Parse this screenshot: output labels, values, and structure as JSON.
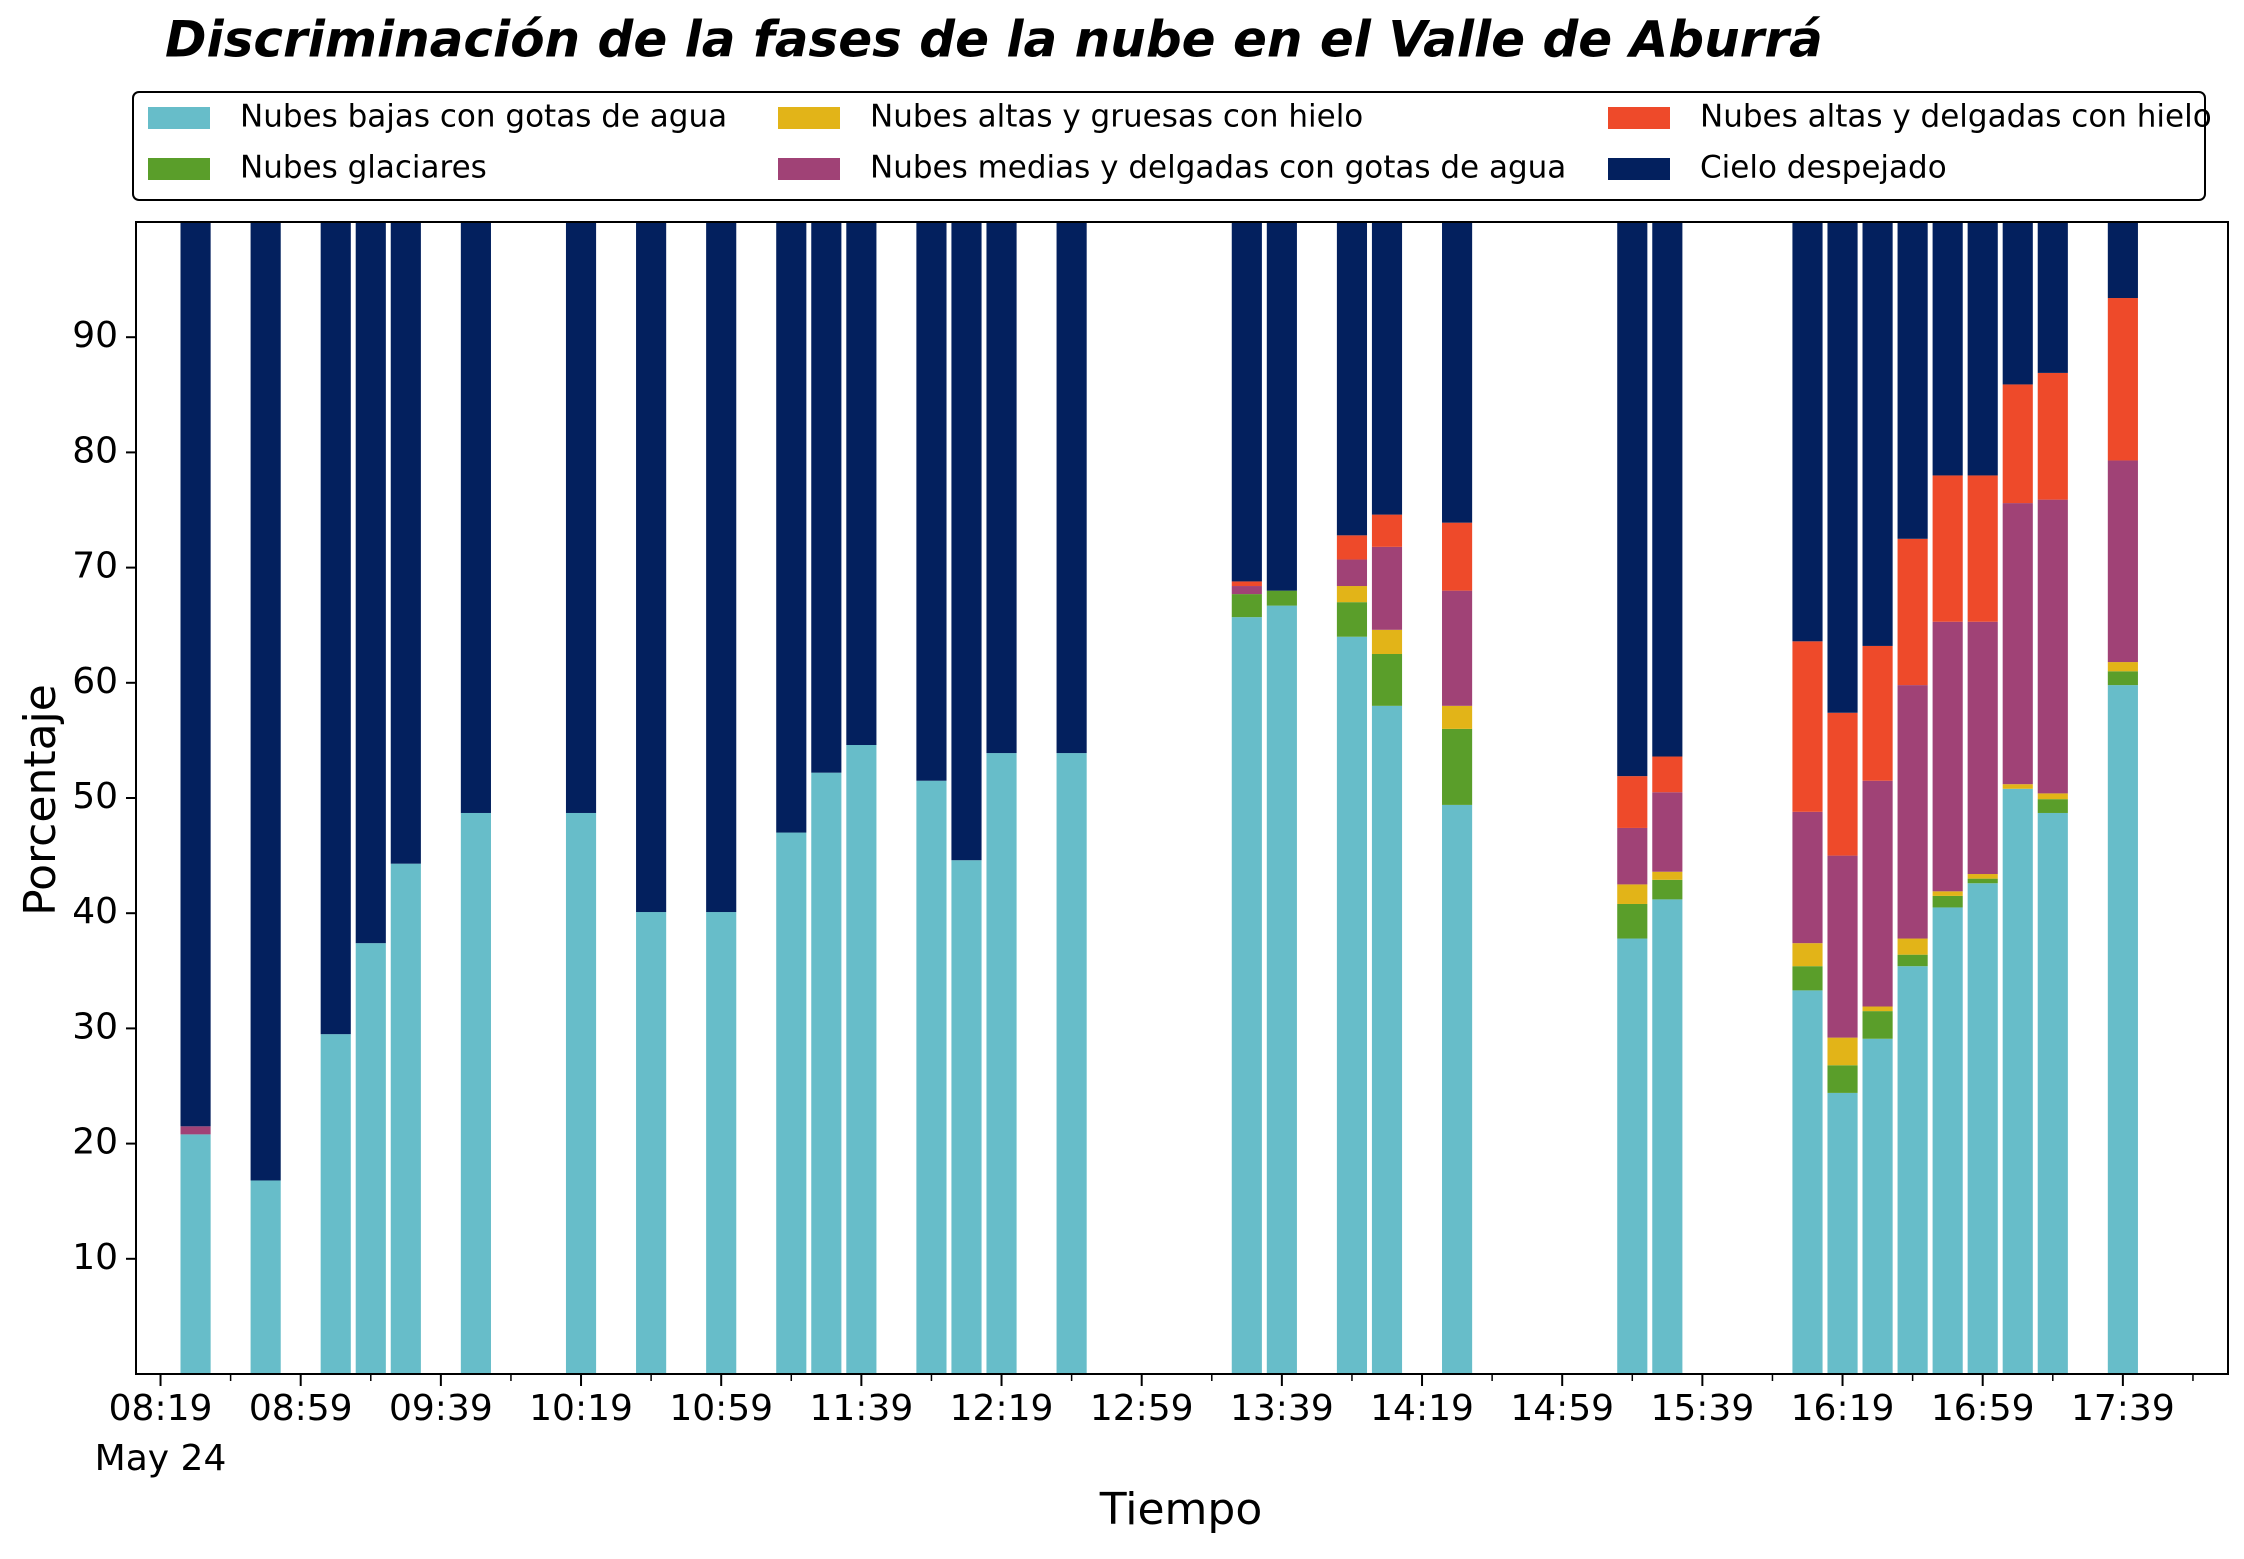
{
  "chart_data": {
    "type": "stacked_bar",
    "title": "Discriminación de la fases de la nube en el Valle de Aburrá",
    "xlabel": "Tiempo",
    "ylabel": "Porcentaje",
    "x_offset_label": "May 24",
    "x": [
      "08:29",
      "08:49",
      "09:09",
      "09:19",
      "09:29",
      "09:49",
      "10:19",
      "10:39",
      "10:59",
      "11:19",
      "11:29",
      "11:39",
      "11:59",
      "12:09",
      "12:19",
      "12:39",
      "13:29",
      "13:39",
      "13:59",
      "14:09",
      "14:29",
      "15:19",
      "15:29",
      "16:09",
      "16:19",
      "16:29",
      "16:39",
      "16:49",
      "16:59",
      "17:09",
      "17:19",
      "17:39"
    ],
    "xlim": [
      "08:12",
      "18:09"
    ],
    "xticks": [
      "08:19",
      "08:59",
      "09:39",
      "10:19",
      "10:59",
      "11:39",
      "12:19",
      "12:59",
      "13:39",
      "14:19",
      "14:59",
      "15:39",
      "16:19",
      "16:59",
      "17:39"
    ],
    "xminorticks": [
      "08:39",
      "09:19",
      "09:59",
      "10:39",
      "11:19",
      "11:59",
      "12:39",
      "13:19",
      "13:59",
      "14:39",
      "15:19",
      "15:59",
      "16:39",
      "17:19",
      "17:59"
    ],
    "ylim": [
      0,
      100
    ],
    "yticks": [
      10,
      20,
      30,
      40,
      50,
      60,
      70,
      80,
      90
    ],
    "legend_position": "top",
    "series": [
      {
        "name": "Nubes bajas con gotas de agua",
        "color": "#67bdc9",
        "values": [
          20.8,
          16.8,
          29.5,
          37.4,
          44.3,
          48.7,
          48.7,
          40.1,
          40.1,
          47.0,
          52.2,
          54.6,
          51.5,
          44.6,
          53.9,
          53.9,
          65.7,
          66.7,
          64.0,
          58.0,
          49.4,
          37.8,
          41.2,
          33.3,
          24.4,
          29.1,
          35.4,
          40.5,
          42.6,
          50.8,
          48.7,
          59.8
        ]
      },
      {
        "name": "Nubes glaciares",
        "color": "#5a9e2a",
        "values": [
          0,
          0,
          0,
          0,
          0,
          0,
          0,
          0,
          0,
          0,
          0,
          0,
          0,
          0,
          0,
          0,
          2.0,
          1.3,
          3.0,
          4.5,
          6.6,
          3.0,
          1.7,
          2.1,
          2.4,
          2.4,
          1.0,
          1.0,
          0.4,
          0,
          1.2,
          1.2
        ]
      },
      {
        "name": "Nubes altas y gruesas con hielo",
        "color": "#e2b418",
        "values": [
          0,
          0,
          0,
          0,
          0,
          0,
          0,
          0,
          0,
          0,
          0,
          0,
          0,
          0,
          0,
          0,
          0,
          0,
          1.4,
          2.1,
          2.0,
          1.7,
          0.7,
          2.0,
          2.4,
          0.4,
          1.4,
          0.4,
          0.4,
          0.4,
          0.5,
          0.8
        ]
      },
      {
        "name": "Nubes medias y delgadas con gotas de agua",
        "color": "#a04276",
        "values": [
          0.7,
          0,
          0,
          0,
          0,
          0,
          0,
          0,
          0,
          0,
          0,
          0,
          0,
          0,
          0,
          0,
          0.7,
          0,
          2.3,
          7.2,
          10.0,
          4.9,
          6.9,
          11.4,
          15.8,
          19.6,
          22.0,
          23.4,
          21.9,
          24.4,
          25.5,
          17.5
        ]
      },
      {
        "name": "Nubes altas y delgadas con hielo",
        "color": "#ee4a2a",
        "values": [
          0,
          0,
          0,
          0,
          0,
          0,
          0,
          0,
          0,
          0,
          0,
          0,
          0,
          0,
          0,
          0,
          0.4,
          0,
          2.1,
          2.8,
          5.9,
          4.5,
          3.1,
          14.8,
          12.4,
          11.7,
          12.7,
          12.7,
          12.7,
          10.3,
          11.0,
          14.1
        ]
      },
      {
        "name": "Cielo despejado",
        "color": "#03205e",
        "values": [
          78.5,
          83.2,
          70.5,
          62.6,
          55.7,
          51.3,
          51.3,
          59.9,
          59.9,
          53.0,
          47.8,
          45.4,
          48.5,
          55.4,
          46.1,
          46.1,
          31.2,
          32.0,
          27.2,
          25.4,
          26.1,
          48.1,
          46.4,
          36.4,
          42.6,
          36.8,
          27.5,
          22.0,
          22.0,
          14.1,
          13.1,
          6.6
        ]
      }
    ]
  }
}
